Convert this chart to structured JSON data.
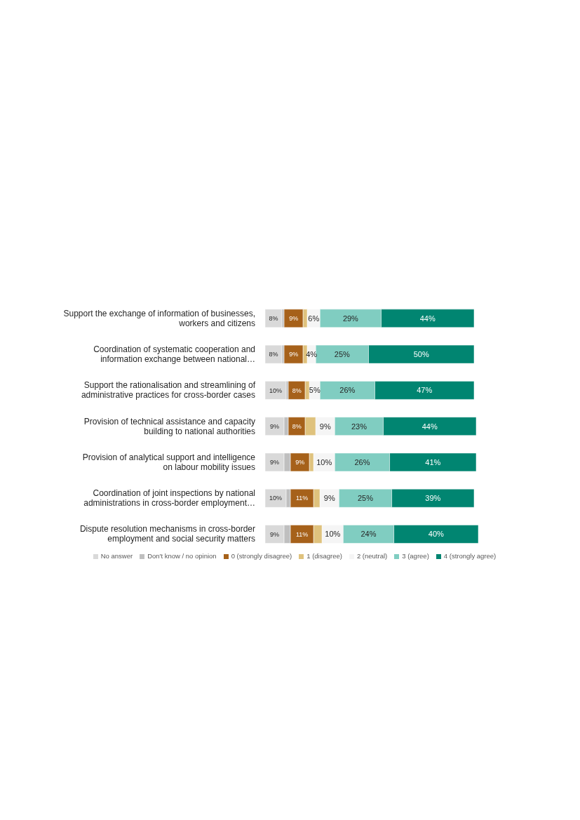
{
  "chart_data": {
    "type": "bar",
    "orientation": "horizontal",
    "stacked": true,
    "legend": "bottom",
    "grid": false,
    "categories": [
      "Support the exchange of information of businesses, workers and citizens",
      "Coordination of systematic cooperation and information exchange between national…",
      "Support the rationalisation and streamlining of administrative practices for cross-border cases",
      "Provision of technical assistance and capacity building to national authorities",
      "Provision of analytical support and intelligence on labour mobility issues",
      "Coordination of joint inspections by national administrations in cross-border employment…",
      "Dispute resolution mechanisms in cross-border employment and social security matters"
    ],
    "series": [
      {
        "name": "No answer",
        "color": "#d9d9d9",
        "values": [
          8,
          8,
          10,
          9,
          9,
          10,
          9
        ],
        "value_labels": [
          "8%",
          "8%",
          "10%",
          "9%",
          "9%",
          "10%",
          "9%"
        ]
      },
      {
        "name": "Don't know / no opinion",
        "color": "#bfbfbf",
        "values": [
          1,
          1,
          1,
          2,
          3,
          2,
          3
        ],
        "value_labels": [
          null,
          null,
          null,
          null,
          null,
          null,
          null
        ]
      },
      {
        "name": "0 (strongly disagree)",
        "color": "#a6611a",
        "values": [
          9,
          9,
          8,
          8,
          9,
          11,
          11
        ],
        "value_labels": [
          "9%",
          "9%",
          "8%",
          "8%",
          "9%",
          "11%",
          "11%"
        ]
      },
      {
        "name": "1 (disagree)",
        "color": "#dfc27d",
        "values": [
          2,
          2,
          2,
          5,
          2,
          3,
          4
        ],
        "value_labels": [
          null,
          null,
          null,
          null,
          null,
          null,
          null
        ]
      },
      {
        "name": "2 (neutral)",
        "color": "#f5f5f5",
        "values": [
          6,
          4,
          5,
          9,
          10,
          9,
          10
        ],
        "value_labels": [
          "6%",
          "4%",
          "5%",
          "9%",
          "10%",
          "9%",
          "10%"
        ]
      },
      {
        "name": "3 (agree)",
        "color": "#80cdc1",
        "values": [
          29,
          25,
          26,
          23,
          26,
          25,
          24
        ],
        "value_labels": [
          "29%",
          "25%",
          "26%",
          "23%",
          "26%",
          "25%",
          "24%"
        ]
      },
      {
        "name": "4 (strongly agree)",
        "color": "#018571",
        "values": [
          44,
          50,
          47,
          44,
          41,
          39,
          40
        ],
        "value_labels": [
          "44%",
          "50%",
          "47%",
          "44%",
          "41%",
          "39%",
          "40%"
        ]
      }
    ]
  }
}
